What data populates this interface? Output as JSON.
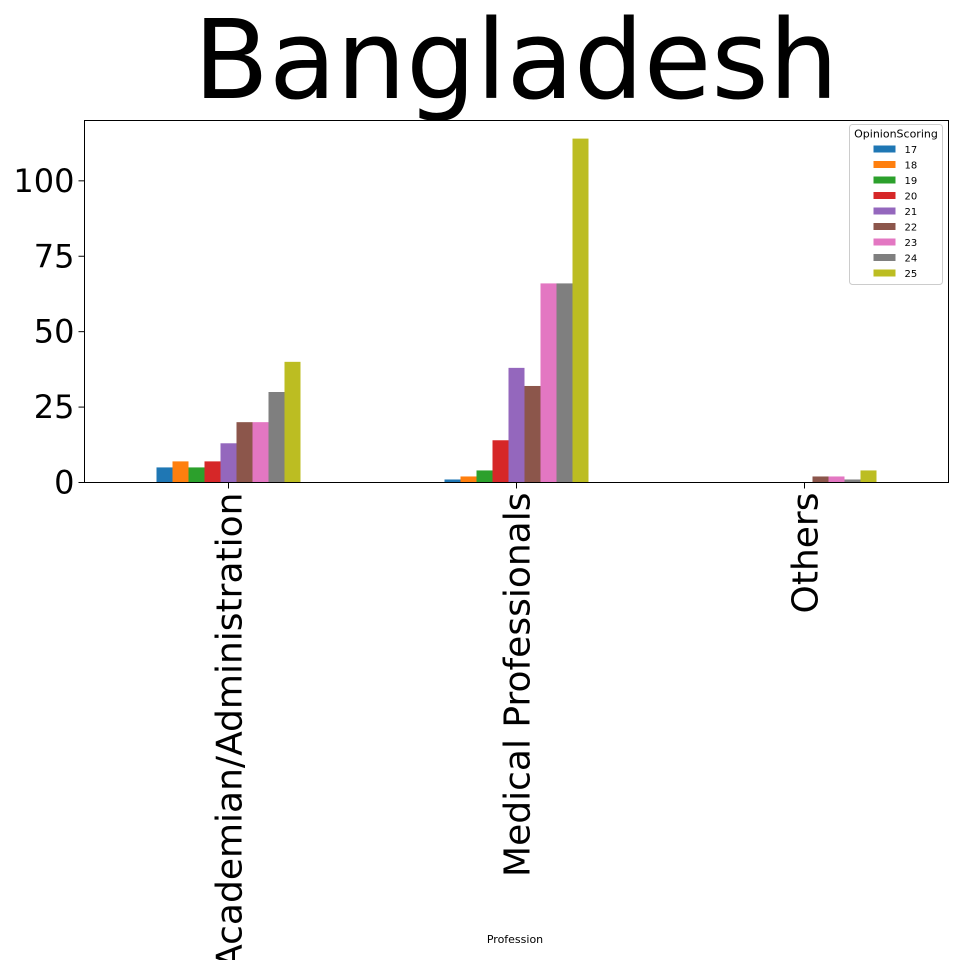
{
  "chart_data": {
    "type": "bar",
    "title": "Bangladesh",
    "xlabel": "Profession",
    "ylabel": "",
    "categories": [
      "Academian/Administration",
      "Medical Professionals",
      "Others"
    ],
    "ylim": [
      0,
      120
    ],
    "yticks": [
      0,
      25,
      50,
      75,
      100
    ],
    "legend": {
      "title": "OpinionScoring",
      "placement": "top-right"
    },
    "series": [
      {
        "name": "17",
        "color": "#1f77b4",
        "values": [
          5,
          1,
          0
        ]
      },
      {
        "name": "18",
        "color": "#ff7f0e",
        "values": [
          7,
          2,
          0
        ]
      },
      {
        "name": "19",
        "color": "#2ca02c",
        "values": [
          5,
          4,
          0
        ]
      },
      {
        "name": "20",
        "color": "#d62728",
        "values": [
          7,
          14,
          0
        ]
      },
      {
        "name": "21",
        "color": "#9467bd",
        "values": [
          13,
          38,
          0
        ]
      },
      {
        "name": "22",
        "color": "#8c564b",
        "values": [
          20,
          32,
          2
        ]
      },
      {
        "name": "23",
        "color": "#e377c2",
        "values": [
          20,
          66,
          2
        ]
      },
      {
        "name": "24",
        "color": "#7f7f7f",
        "values": [
          30,
          66,
          1
        ]
      },
      {
        "name": "25",
        "color": "#bcbd22",
        "values": [
          40,
          114,
          4
        ]
      }
    ]
  }
}
